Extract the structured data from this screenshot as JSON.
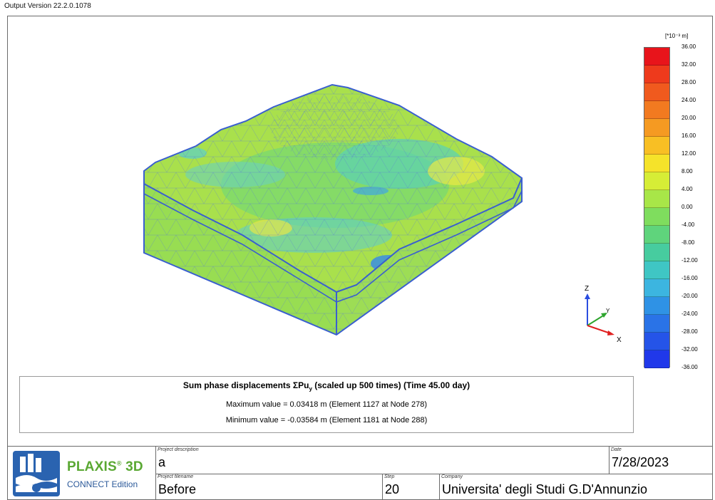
{
  "header": {
    "version": "Output Version 22.2.0.1078"
  },
  "plot": {
    "legend": {
      "unit": "[*10⁻³ m]",
      "ticks": [
        "36.00",
        "32.00",
        "28.00",
        "24.00",
        "20.00",
        "16.00",
        "12.00",
        "8.00",
        "4.00",
        "0.00",
        "-4.00",
        "-8.00",
        "-12.00",
        "-16.00",
        "-20.00",
        "-24.00",
        "-28.00",
        "-32.00",
        "-36.00"
      ],
      "colors": [
        "#e8141b",
        "#ee3a1c",
        "#f05a1e",
        "#f27a20",
        "#f59a22",
        "#f8bf24",
        "#f5e32a",
        "#d6ed36",
        "#a8e648",
        "#7fdd5e",
        "#5fd47c",
        "#47cc9f",
        "#3fc6c4",
        "#3cb5e0",
        "#2f92e5",
        "#2a73e7",
        "#2554e8",
        "#2038ea"
      ]
    },
    "axes": {
      "z": "Z",
      "y": "Y",
      "x": "X"
    },
    "colors": {
      "outline": "#3a5fcf",
      "mesh": "#4e6fd8",
      "base": "#a5e24a"
    }
  },
  "info": {
    "title_main": "Sum phase displacements ΣPu",
    "title_sub": "y",
    "title_rest": " (scaled up 500 times) (Time 45.00 day)",
    "max": "Maximum value = 0.03418 m (Element 1127 at Node 278)",
    "min": "Minimum value = -0.03584 m (Element 1181 at Node 288)"
  },
  "footer": {
    "brand": "PLAXIS",
    "brand_sup": "®",
    "brand_3d": " 3D",
    "edition": "CONNECT Edition",
    "project_description_label": "Project description",
    "project_description": "a",
    "date_label": "Date",
    "date": "7/28/2023",
    "project_filename_label": "Project filename",
    "project_filename": "Before",
    "step_label": "Step",
    "step": "20",
    "company_label": "Company",
    "company": "Universita' degli Studi G.D'Annunzio"
  }
}
